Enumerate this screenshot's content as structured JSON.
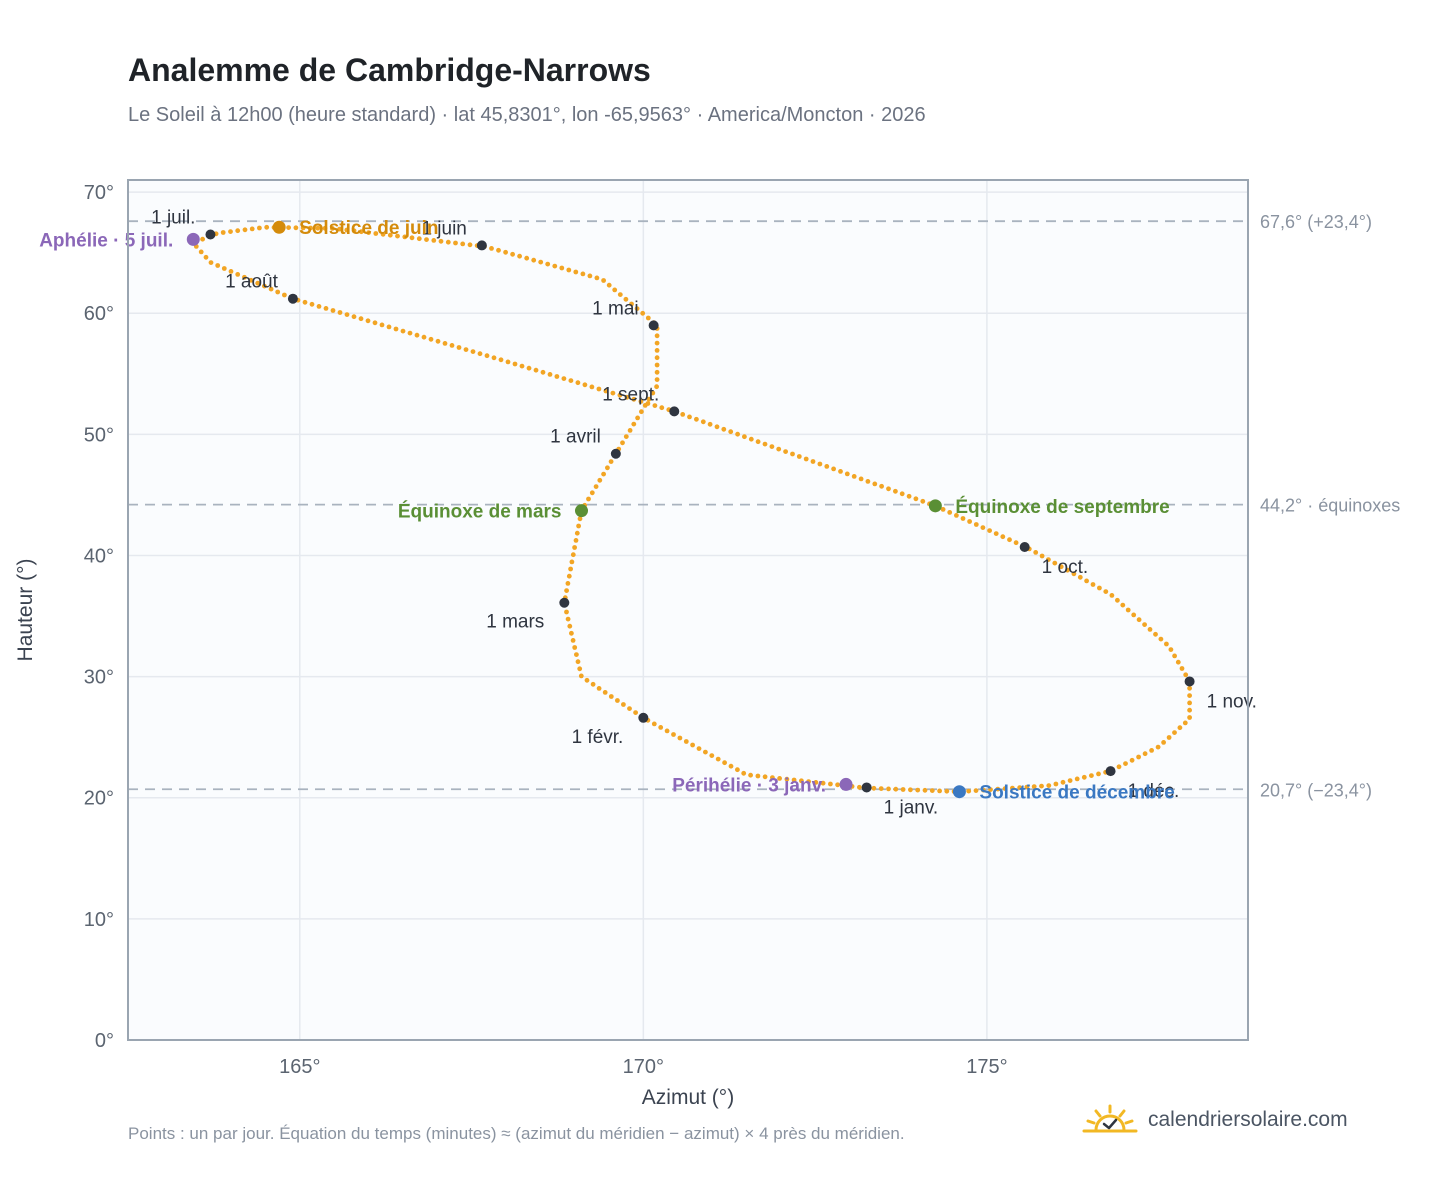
{
  "header": {
    "title": "Analemme de Cambridge-Narrows",
    "subtitle": "Le Soleil à 12h00 (heure standard) · lat 45,8301°, lon -65,9563° · America/Moncton · 2026"
  },
  "footer": {
    "note": "Points : un par jour. Équation du temps (minutes) ≈ (azimut du méridien − azimut) × 4 près du méridien.",
    "brand": "calendriersolaire.com",
    "brand_icon": "sun-check-icon"
  },
  "colors": {
    "curve": "#f2a524",
    "month_marker": "#2f3540",
    "equinox": "#5a8f35",
    "june_solstice": "#d48b0b",
    "december_solstice": "#3a78c2",
    "apsis": "#8b67b8",
    "reference_line": "#a9b3bf",
    "plot_background": "#fafcfe",
    "grid": "#e5e9ef",
    "frame": "#9aa5b1"
  },
  "chart_data": {
    "type": "scatter",
    "title": "Analemme de Cambridge-Narrows",
    "xlabel": "Azimut (°)",
    "ylabel": "Hauteur (°)",
    "xlim": [
      162.5,
      178.8
    ],
    "ylim": [
      0,
      71
    ],
    "x_ticks": [
      {
        "value": 165,
        "label": "165°"
      },
      {
        "value": 170,
        "label": "170°"
      },
      {
        "value": 175,
        "label": "175°"
      }
    ],
    "y_ticks": [
      {
        "value": 0,
        "label": "0°"
      },
      {
        "value": 10,
        "label": "10°"
      },
      {
        "value": 20,
        "label": "20°"
      },
      {
        "value": 30,
        "label": "30°"
      },
      {
        "value": 40,
        "label": "40°"
      },
      {
        "value": 50,
        "label": "50°"
      },
      {
        "value": 60,
        "label": "60°"
      },
      {
        "value": 70,
        "label": "70°"
      }
    ],
    "grid": true,
    "series": [
      {
        "type": "daily-points",
        "anchors": [
          [
            173.25,
            20.8
          ],
          [
            171.5,
            21.9
          ],
          [
            170.0,
            26.6
          ],
          [
            169.1,
            30.0
          ],
          [
            168.85,
            36.1
          ],
          [
            169.1,
            43.7
          ],
          [
            169.6,
            48.4
          ],
          [
            170.2,
            54.0
          ],
          [
            170.2,
            59.0
          ],
          [
            169.4,
            62.8
          ],
          [
            167.7,
            65.5
          ],
          [
            165.5,
            67.0
          ],
          [
            164.5,
            67.1
          ],
          [
            163.8,
            66.6
          ],
          [
            163.45,
            65.8
          ],
          [
            163.7,
            64.2
          ],
          [
            164.9,
            61.2
          ],
          [
            167.9,
            56.2
          ],
          [
            170.45,
            51.9
          ],
          [
            172.5,
            47.7
          ],
          [
            174.25,
            44.1
          ],
          [
            175.6,
            40.6
          ],
          [
            176.8,
            36.8
          ],
          [
            177.65,
            32.5
          ],
          [
            177.95,
            29.6
          ],
          [
            177.95,
            26.5
          ],
          [
            177.5,
            24.2
          ],
          [
            176.8,
            22.2
          ],
          [
            175.9,
            21.0
          ],
          [
            174.6,
            20.5
          ],
          [
            173.25,
            20.8
          ]
        ]
      }
    ],
    "reference_lines": [
      {
        "y": 67.6,
        "label": "67,6° (+23,4°)"
      },
      {
        "y": 44.2,
        "label": "44,2° · équinoxes"
      },
      {
        "y": 20.7,
        "label": "20,7° (−23,4°)"
      }
    ],
    "month_markers": [
      {
        "label": "1 janv.",
        "x": 173.25,
        "y": 20.85,
        "label_pos": "below-right"
      },
      {
        "label": "1 févr.",
        "x": 170.0,
        "y": 26.6,
        "label_pos": "below-left"
      },
      {
        "label": "1 mars",
        "x": 168.85,
        "y": 36.1,
        "label_pos": "below-left"
      },
      {
        "label": "1 avril",
        "x": 169.6,
        "y": 48.4,
        "label_pos": "above-left"
      },
      {
        "label": "1 mai",
        "x": 170.15,
        "y": 59.0,
        "label_pos": "above-left"
      },
      {
        "label": "1 juin",
        "x": 167.65,
        "y": 65.6,
        "label_pos": "above-left"
      },
      {
        "label": "1 juil.",
        "x": 163.7,
        "y": 66.5,
        "label_pos": "above-left"
      },
      {
        "label": "1 août",
        "x": 164.9,
        "y": 61.2,
        "label_pos": "above-left"
      },
      {
        "label": "1 sept.",
        "x": 170.45,
        "y": 51.9,
        "label_pos": "above-left"
      },
      {
        "label": "1 oct.",
        "x": 175.55,
        "y": 40.7,
        "label_pos": "below-right"
      },
      {
        "label": "1 nov.",
        "x": 177.95,
        "y": 29.6,
        "label_pos": "below-right"
      },
      {
        "label": "1 déc.",
        "x": 176.8,
        "y": 22.2,
        "label_pos": "below-right"
      }
    ],
    "events": [
      {
        "label": "Équinoxe de mars",
        "x": 169.1,
        "y": 43.7,
        "color_key": "equinox",
        "label_pos": "left"
      },
      {
        "label": "Équinoxe de septembre",
        "x": 174.25,
        "y": 44.1,
        "color_key": "equinox",
        "label_pos": "right"
      },
      {
        "label": "Solstice de juin",
        "x": 164.7,
        "y": 67.1,
        "color_key": "june_solstice",
        "label_pos": "right"
      },
      {
        "label": "Solstice de décembre",
        "x": 174.6,
        "y": 20.5,
        "color_key": "december_solstice",
        "label_pos": "right"
      },
      {
        "label": "Aphélie · 5 juil.",
        "x": 163.45,
        "y": 66.1,
        "color_key": "apsis",
        "label_pos": "left"
      },
      {
        "label": "Périhélie · 3 janv.",
        "x": 172.95,
        "y": 21.1,
        "color_key": "apsis",
        "label_pos": "left"
      }
    ]
  }
}
